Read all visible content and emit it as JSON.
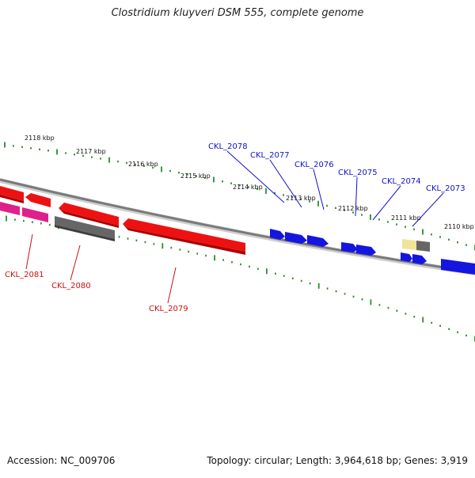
{
  "title": "Clostridium kluyveri DSM 555, complete genome",
  "footer": {
    "accession": "Accession: NC_009706",
    "summary": "Topology: circular; Length: 3,964,618 bp; Genes: 3,919"
  },
  "colors": {
    "background": "#ffffff",
    "backbone": "#8a8a8a",
    "tick": "#2e8b2e",
    "forward_label": "#1010cc",
    "reverse_label": "#cc1010",
    "gene_red": "#ee1111",
    "gene_blue": "#1515e0",
    "gene_magenta": "#e0208a",
    "gene_gray": "#666666",
    "gene_yellow": "#f0e39a"
  },
  "scale_labels": [
    {
      "text": "2118 kbp"
    },
    {
      "text": "2117 kbp"
    },
    {
      "text": "2116 kbp"
    },
    {
      "text": "2115 kbp"
    },
    {
      "text": "2114 kbp"
    },
    {
      "text": "2113 kbp"
    },
    {
      "text": "2112 kbp"
    },
    {
      "text": "2111 kbp"
    },
    {
      "text": "2110 kbp"
    }
  ],
  "forward_genes": [
    {
      "label": "CKL_2078",
      "color": "blue"
    },
    {
      "label": "CKL_2077",
      "color": "blue"
    },
    {
      "label": "CKL_2076",
      "color": "blue"
    },
    {
      "label": "CKL_2075",
      "color": "blue"
    },
    {
      "label": "CKL_2074",
      "color": "blue"
    },
    {
      "label": "CKL_2073",
      "color": "blue"
    }
  ],
  "reverse_genes": [
    {
      "label": "CKL_2081",
      "color": "magenta"
    },
    {
      "label": "CKL_2080",
      "color": "gray"
    },
    {
      "label": "CKL_2079",
      "color": "red"
    }
  ]
}
